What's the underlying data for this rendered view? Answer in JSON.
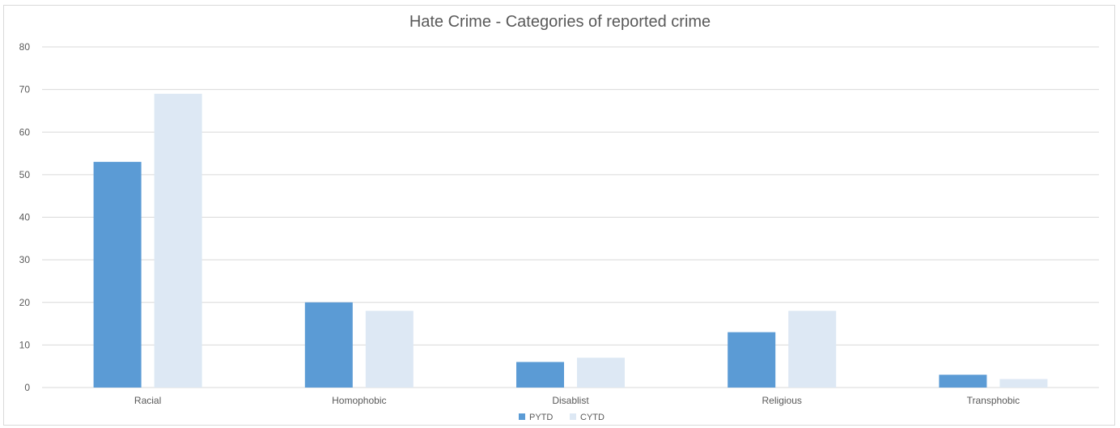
{
  "chart_data": {
    "type": "bar",
    "title": "Hate Crime - Categories of reported crime",
    "xlabel": "",
    "ylabel": "",
    "categories": [
      "Racial",
      "Homophobic",
      "Disablist",
      "Religious",
      "Transphobic"
    ],
    "series": [
      {
        "name": "PYTD",
        "values": [
          53,
          20,
          6,
          13,
          3
        ],
        "color": "#5b9bd5"
      },
      {
        "name": "CYTD",
        "values": [
          69,
          18,
          7,
          18,
          2
        ],
        "color": "#dde8f4"
      }
    ],
    "ylim": [
      0,
      80
    ],
    "yticks": [
      "0",
      "10",
      "20",
      "30",
      "40",
      "50",
      "60",
      "70",
      "80"
    ],
    "grid": true,
    "legend_position": "bottom"
  },
  "colors": {
    "grid": "#d9d9d9",
    "axis_text": "#595959"
  }
}
